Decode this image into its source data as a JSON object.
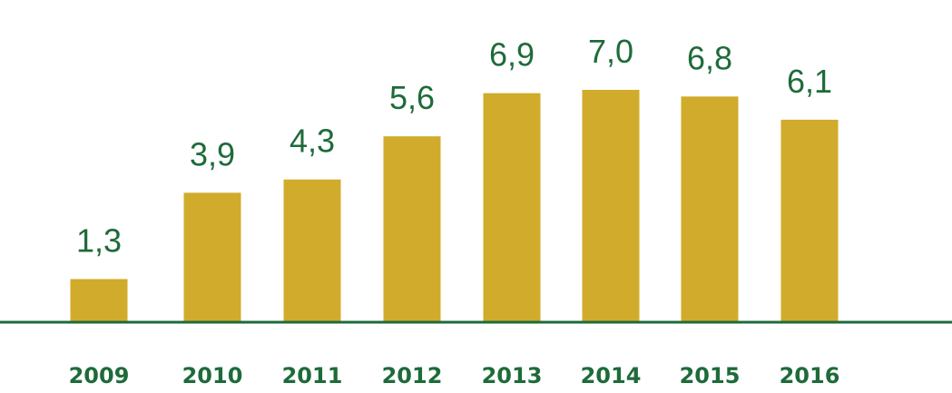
{
  "colors": {
    "bar": "#d1ab2b",
    "axis": "#1e6b3a",
    "text": "#1e6b3a"
  },
  "chart_data": {
    "type": "bar",
    "categories": [
      "2009",
      "2010",
      "2011",
      "2012",
      "2013",
      "2014",
      "2015",
      "2016"
    ],
    "values": [
      1.3,
      3.9,
      4.3,
      5.6,
      6.9,
      7.0,
      6.8,
      6.1
    ],
    "value_labels": [
      "1,3",
      "3,9",
      "4,3",
      "5,6",
      "6,9",
      "7,0",
      "6,8",
      "6,1"
    ],
    "title": "",
    "xlabel": "",
    "ylabel": "",
    "ylim": [
      0,
      7.0
    ],
    "grid": false,
    "legend": "none"
  }
}
